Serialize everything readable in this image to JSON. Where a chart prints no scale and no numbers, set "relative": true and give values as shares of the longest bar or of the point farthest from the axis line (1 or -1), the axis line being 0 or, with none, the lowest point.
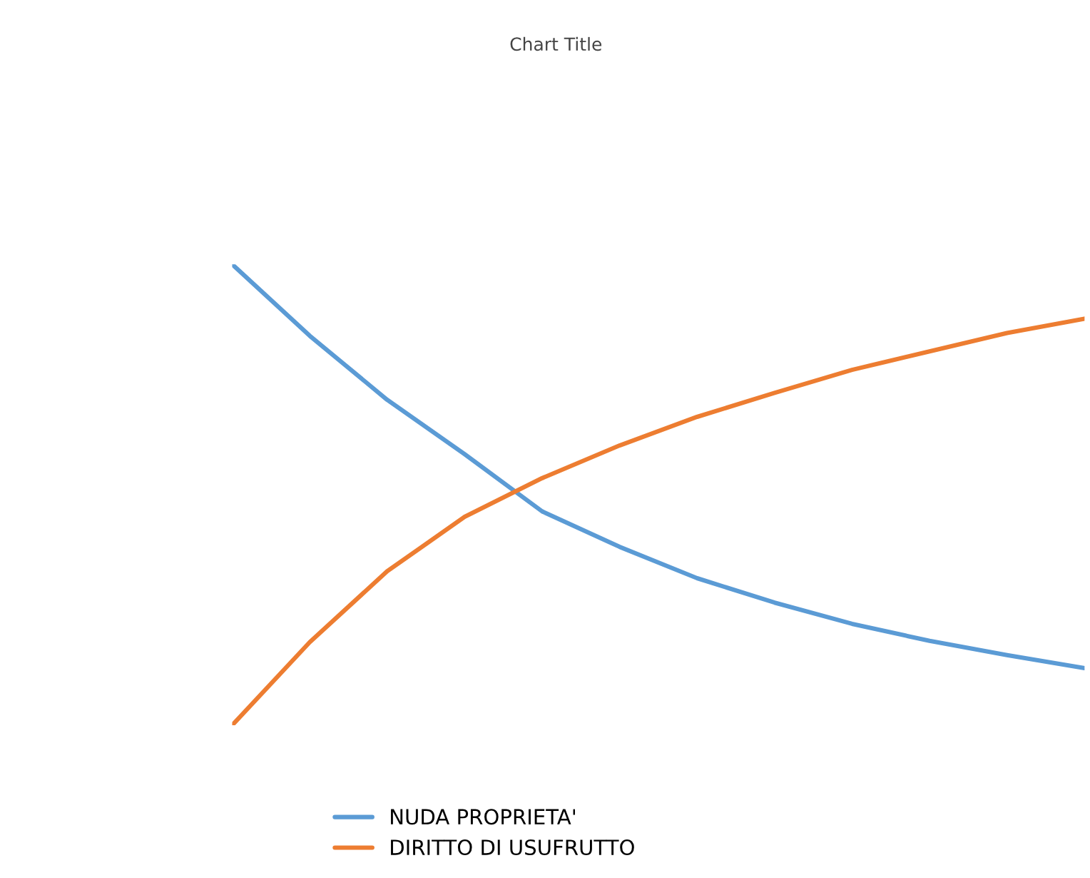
{
  "chart_data": {
    "type": "line",
    "title": "Chart Title",
    "relative": true,
    "categories": [
      null,
      null,
      null,
      null,
      null,
      null,
      null,
      null,
      null,
      null,
      null,
      null
    ],
    "series": [
      {
        "name": "NUDA PROPRIETA'",
        "color": "#5b9bd5",
        "values": [
          1.0,
          0.845,
          0.706,
          0.588,
          0.464,
          0.387,
          0.319,
          0.266,
          0.22,
          0.183,
          0.152,
          0.124
        ]
      },
      {
        "name": "DIRITTO DI USUFRUTTO",
        "color": "#ed7d31",
        "values": [
          0.0,
          0.18,
          0.334,
          0.452,
          0.536,
          0.607,
          0.669,
          0.721,
          0.771,
          0.811,
          0.851,
          0.882
        ]
      }
    ],
    "legend": "bottom",
    "grid": false,
    "marker": "none",
    "line_style": "solid"
  }
}
